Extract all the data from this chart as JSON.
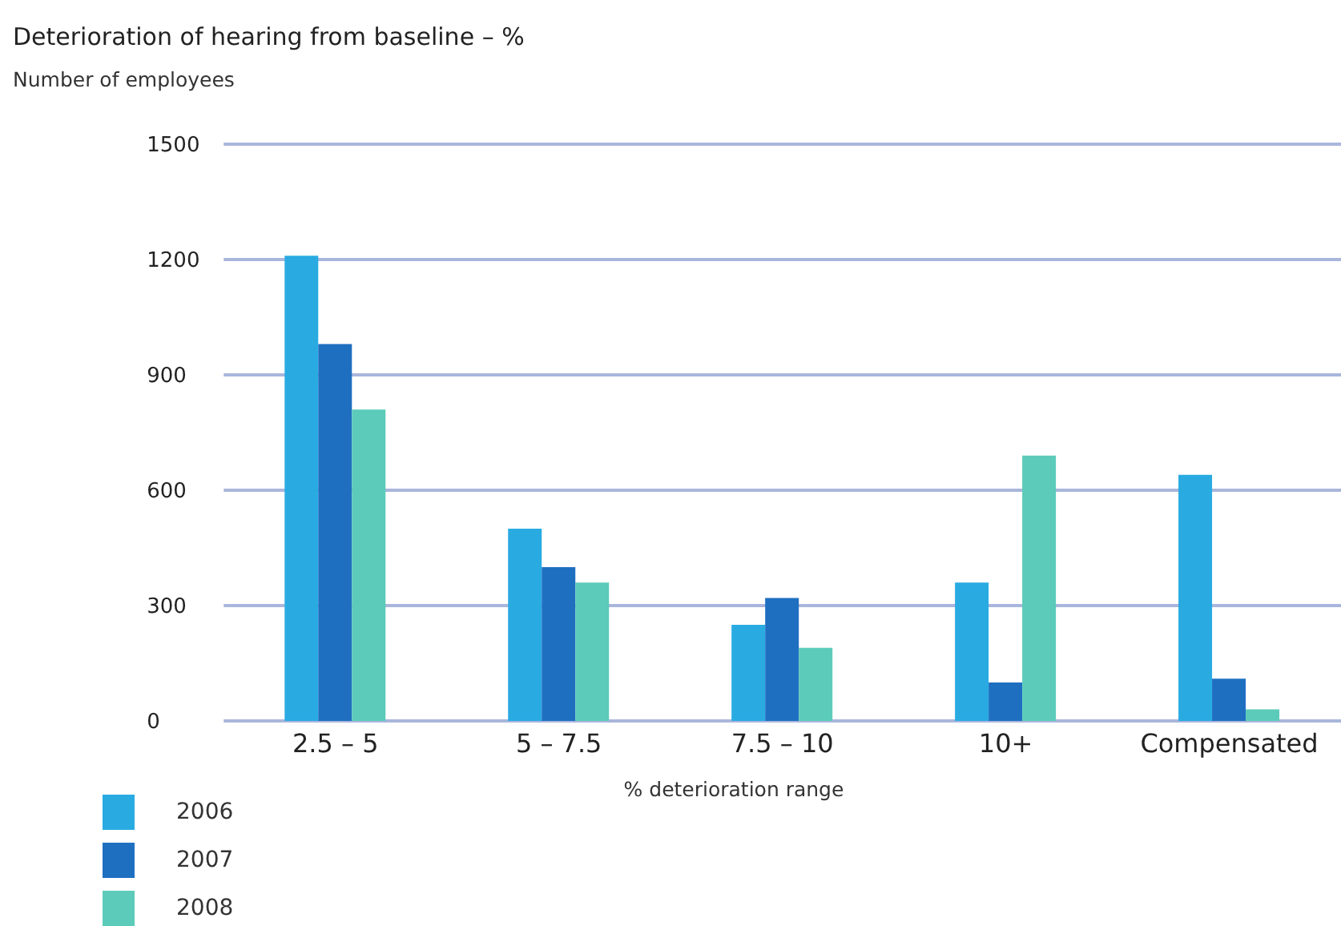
{
  "chart_data": {
    "type": "bar",
    "title": "Deterioration of hearing from baseline – %",
    "ylabel": "Number of employees",
    "xlabel": "% deterioration range",
    "categories": [
      "2.5 – 5",
      "5 – 7.5",
      "7.5 – 10",
      "10+",
      "Compensated"
    ],
    "series": [
      {
        "name": "2006",
        "color": "#29abe2",
        "values": [
          1210,
          500,
          250,
          360,
          640
        ]
      },
      {
        "name": "2007",
        "color": "#1f6fc1",
        "values": [
          980,
          400,
          320,
          100,
          110
        ]
      },
      {
        "name": "2008",
        "color": "#5ccbb9",
        "values": [
          810,
          360,
          190,
          690,
          30
        ]
      }
    ],
    "ylim": [
      0,
      1500
    ],
    "yticks": [
      0,
      300,
      600,
      900,
      1200,
      1500
    ],
    "grid": "y",
    "legend": "bottom left"
  }
}
